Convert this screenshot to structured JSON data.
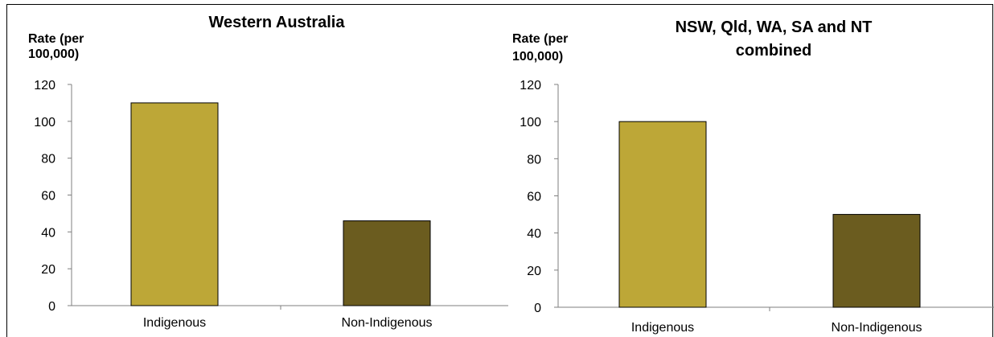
{
  "chart_data": [
    {
      "type": "bar",
      "title": [
        "Western Australia"
      ],
      "ylabel": [
        "Rate (per",
        "100,000)"
      ],
      "categories": [
        "Indigenous",
        "Non-Indigenous"
      ],
      "values": [
        110,
        46
      ],
      "ylim": [
        0,
        120
      ],
      "yticks": [
        "0",
        "20",
        "40",
        "60",
        "80",
        "100",
        "120"
      ],
      "colors": [
        "#BDA737",
        "#6B5C1F"
      ],
      "grid": false
    },
    {
      "type": "bar",
      "title": [
        "NSW, Qld, WA, SA and NT",
        "combined"
      ],
      "ylabel": [
        "Rate (per",
        "100,000)"
      ],
      "categories": [
        "Indigenous",
        "Non-Indigenous"
      ],
      "values": [
        100,
        50
      ],
      "ylim": [
        0,
        120
      ],
      "yticks": [
        "0",
        "20",
        "40",
        "60",
        "80",
        "100",
        "120"
      ],
      "colors": [
        "#BDA737",
        "#6B5C1F"
      ],
      "grid": false
    }
  ]
}
